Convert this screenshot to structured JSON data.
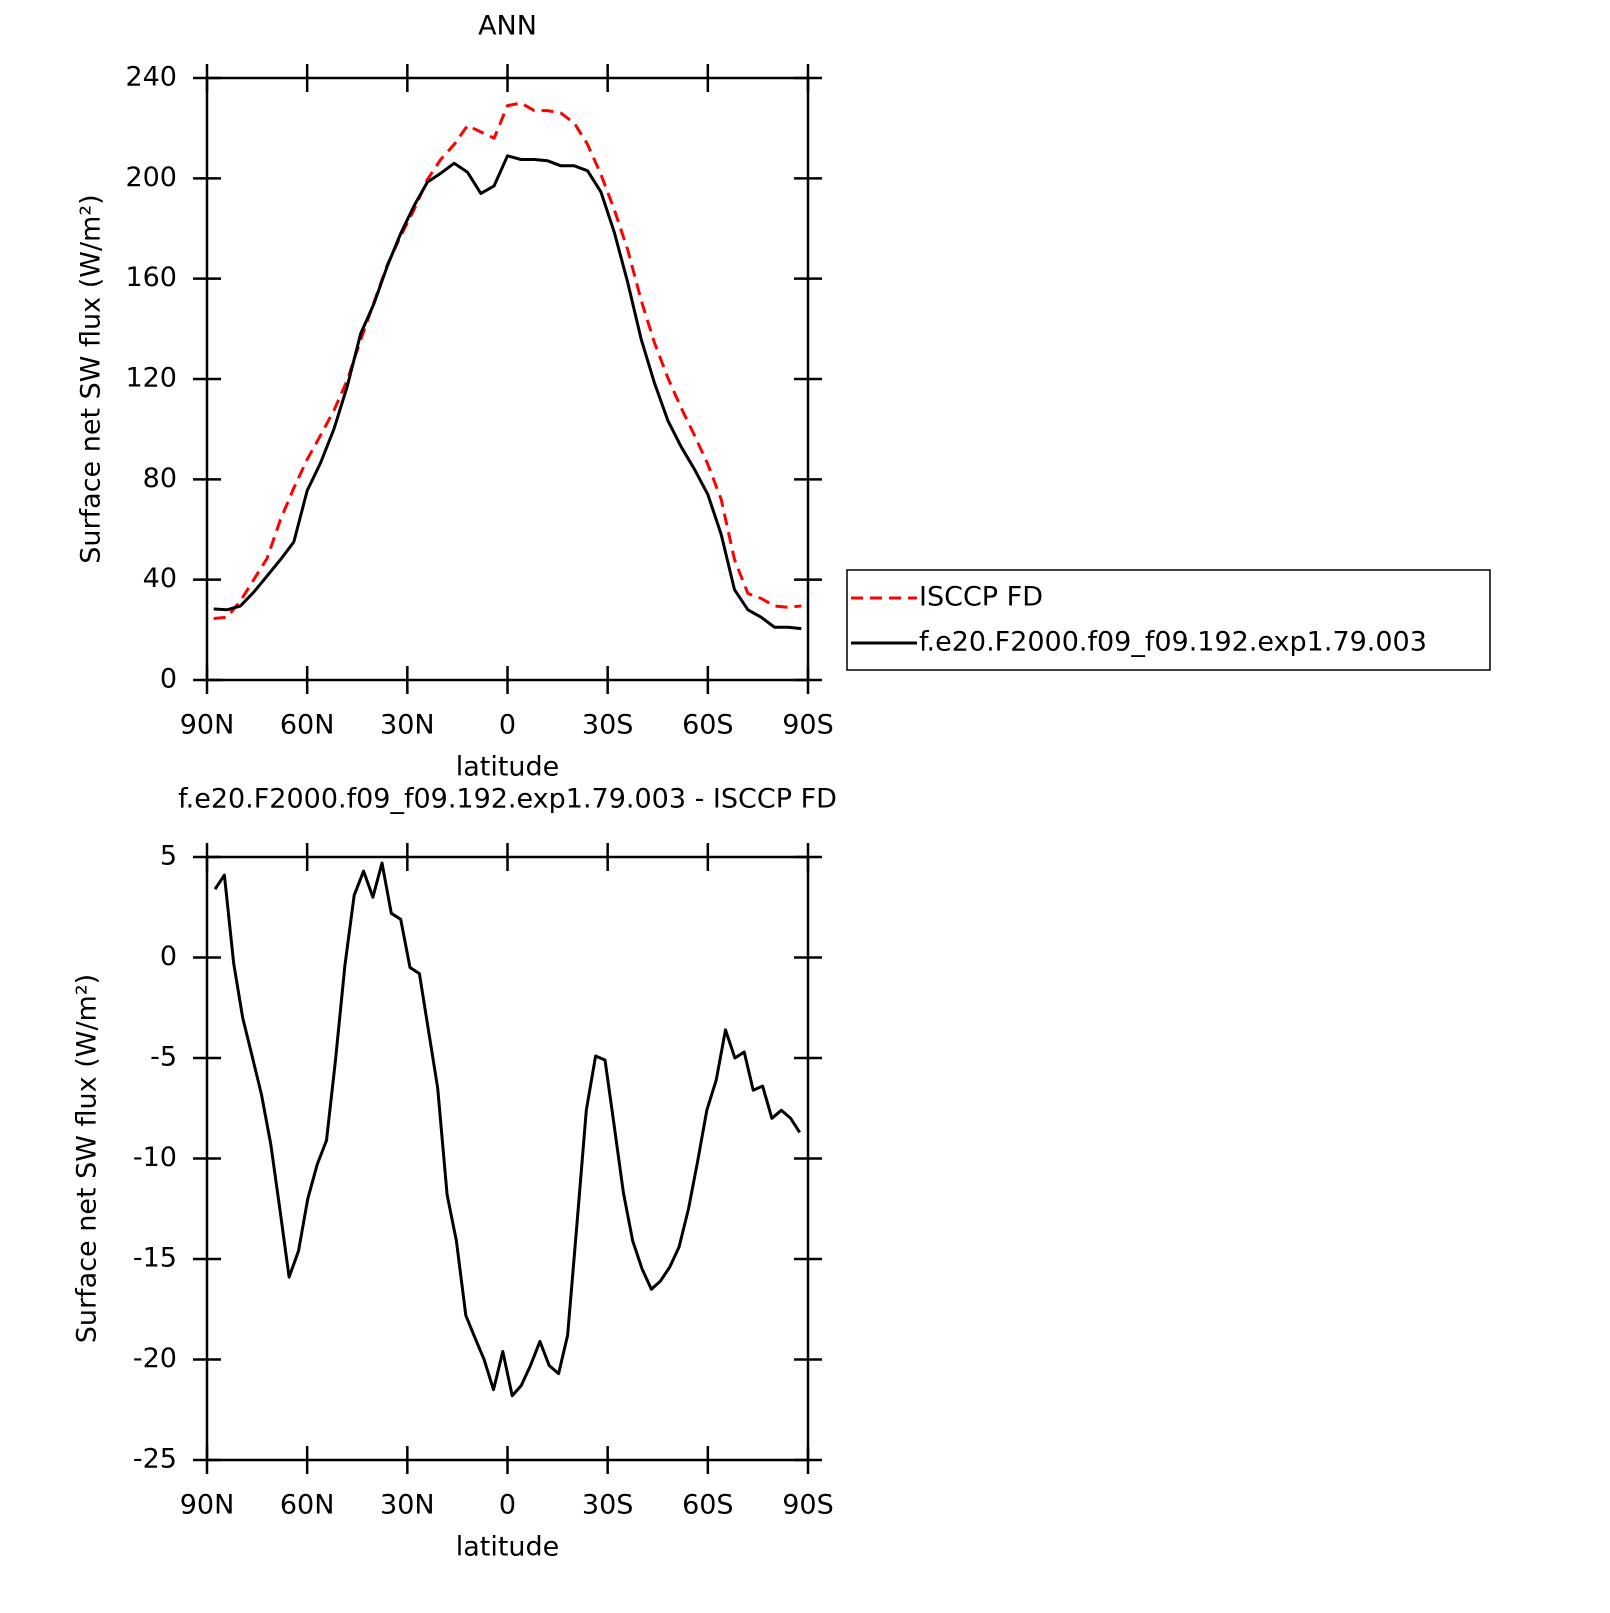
{
  "chart_data": [
    {
      "type": "line",
      "title": "ANN",
      "ylabel": "Surface net SW flux (W/m²)",
      "xlabel": "latitude",
      "xlim": [
        90,
        -90
      ],
      "xticks": [
        {
          "value": 90,
          "label": "90N"
        },
        {
          "value": 60,
          "label": "60N"
        },
        {
          "value": 30,
          "label": "30N"
        },
        0,
        {
          "value": -30,
          "label": "30S"
        },
        {
          "value": -60,
          "label": "60S"
        },
        {
          "value": -90,
          "label": "90S"
        }
      ],
      "ylim": [
        0,
        240
      ],
      "yticks": [
        0,
        40,
        80,
        120,
        160,
        200,
        240
      ],
      "x": [
        88,
        84,
        80,
        76,
        72,
        68,
        64,
        60,
        56,
        52,
        48,
        44,
        40,
        36,
        32,
        28,
        24,
        20,
        16,
        12,
        8,
        4,
        0,
        -4,
        -8,
        -12,
        -16,
        -20,
        -24,
        -28,
        -32,
        -36,
        -40,
        -44,
        -48,
        -52,
        -56,
        -60,
        -64,
        -68,
        -72,
        -76,
        -80,
        -84,
        -88
      ],
      "legend": "outside right",
      "series": [
        {
          "name": "ISCCP FD",
          "color": "#ff0000",
          "dashed": true,
          "values": [
            24.5,
            25,
            31.5,
            40,
            48.5,
            64,
            76.5,
            88,
            97.5,
            107.5,
            119.5,
            135.5,
            150.5,
            165.5,
            177,
            187.5,
            199.5,
            207.5,
            213.5,
            221,
            218.5,
            216,
            229,
            230,
            227,
            227,
            226,
            222,
            213.5,
            201.5,
            187.5,
            171.5,
            151.5,
            134.5,
            120.5,
            108.5,
            97.5,
            86,
            72,
            48,
            34.5,
            32.5,
            29.5,
            29,
            29.5
          ]
        },
        {
          "name": "f.e20.F2000.f09_f09.192.exp1.79.003",
          "color": "#000000",
          "dashed": false,
          "values": [
            28.3,
            28,
            29.5,
            35,
            41.5,
            48,
            55,
            75.5,
            86.5,
            100,
            117,
            138,
            150,
            165,
            178,
            189,
            198.5,
            202,
            206,
            202.5,
            194,
            197,
            209,
            207.5,
            207.5,
            207,
            205,
            205,
            203,
            194.5,
            178.5,
            158.5,
            136,
            118.5,
            103.5,
            93,
            84,
            74,
            58,
            36,
            28,
            25,
            21,
            21,
            20.5
          ]
        }
      ]
    },
    {
      "type": "line",
      "title": "f.e20.F2000.f09_f09.192.exp1.79.003 - ISCCP FD",
      "ylabel": "Surface net SW flux (W/m²)",
      "xlabel": "latitude",
      "xlim": [
        90,
        -90
      ],
      "xticks": [
        {
          "value": 90,
          "label": "90N"
        },
        {
          "value": 60,
          "label": "60N"
        },
        {
          "value": 30,
          "label": "30N"
        },
        0,
        {
          "value": -30,
          "label": "30S"
        },
        {
          "value": -60,
          "label": "60S"
        },
        {
          "value": -90,
          "label": "90S"
        }
      ],
      "ylim": [
        -25,
        5
      ],
      "yticks": [
        -25,
        -20,
        -15,
        -10,
        -5,
        0,
        5
      ],
      "color": "#000000",
      "x": [
        87.6,
        84.8,
        82.0,
        79.3,
        76.5,
        73.7,
        70.9,
        68.1,
        65.4,
        62.6,
        59.8,
        57.0,
        54.2,
        51.5,
        48.7,
        45.9,
        43.1,
        40.3,
        37.6,
        34.8,
        32.0,
        29.2,
        26.4,
        23.7,
        20.9,
        18.1,
        15.3,
        12.5,
        9.8,
        7.0,
        4.2,
        1.4,
        -1.4,
        -4.1,
        -6.9,
        -9.7,
        -12.5,
        -15.3,
        -18.0,
        -20.8,
        -23.6,
        -26.4,
        -29.2,
        -31.9,
        -34.7,
        -37.5,
        -40.3,
        -43.1,
        -45.8,
        -48.6,
        -51.4,
        -54.2,
        -57.0,
        -59.7,
        -62.5,
        -65.3,
        -68.1,
        -70.9,
        -73.6,
        -76.4,
        -79.2,
        -82.0,
        -84.8,
        -87.5
      ],
      "values": [
        3.4,
        4.1,
        -0.3,
        -3,
        -4.9,
        -6.8,
        -9.3,
        -12.6,
        -15.9,
        -14.6,
        -12,
        -10.3,
        -9.1,
        -5.1,
        -0.4,
        3.1,
        4.3,
        3,
        4.7,
        2.2,
        1.9,
        -0.5,
        -0.8,
        -3.6,
        -6.5,
        -11.8,
        -14.1,
        -17.8,
        -18.9,
        -20,
        -21.5,
        -19.6,
        -21.8,
        -21.3,
        -20.3,
        -19.1,
        -20.3,
        -20.7,
        -18.8,
        -13.3,
        -7.6,
        -4.9,
        -5.1,
        -8.3,
        -11.7,
        -14.1,
        -15.5,
        -16.5,
        -16.1,
        -15.4,
        -14.4,
        -12.5,
        -10.1,
        -7.6,
        -6.1,
        -3.6,
        -5,
        -4.7,
        -6.6,
        -6.4,
        -8,
        -7.6,
        -8,
        -8.7
      ]
    }
  ]
}
